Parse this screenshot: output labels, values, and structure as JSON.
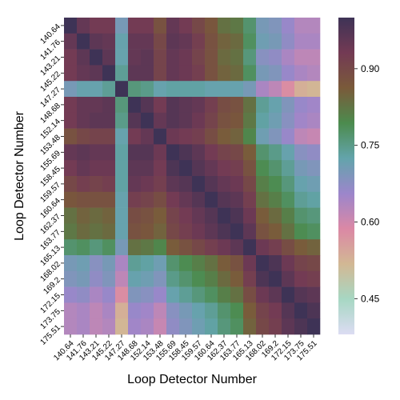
{
  "chart_data": {
    "type": "heatmap",
    "xlabel": "Loop Detector Number",
    "ylabel": "Loop Detector Number",
    "tick_labels": [
      "140.64",
      "141.76",
      "143.21",
      "145.22",
      "147.27",
      "148.68",
      "152.14",
      "153.48",
      "155.69",
      "158.45",
      "159.57",
      "160.64",
      "162.37",
      "163.77",
      "165.13",
      "168.02",
      "169.2",
      "172.15",
      "173.75",
      "175.51"
    ],
    "colorbar": {
      "min": 0.38,
      "max": 1.0,
      "ticks": [
        0.45,
        0.6,
        0.75,
        0.9
      ],
      "tick_labels": [
        "0.45",
        "0.60",
        "0.75",
        "0.90"
      ]
    },
    "colormap": [
      "#dcdcf3",
      "#a7d7c3",
      "#d2b894",
      "#db88a5",
      "#9c86cb",
      "#63a4ab",
      "#4c8b4e",
      "#7a5a3a",
      "#733a54",
      "#3e3356"
    ],
    "matrix": [
      [
        1.0,
        0.95,
        0.93,
        0.93,
        0.7,
        0.93,
        0.93,
        0.88,
        0.95,
        0.93,
        0.9,
        0.87,
        0.83,
        0.82,
        0.77,
        0.7,
        0.69,
        0.66,
        0.63,
        0.63
      ],
      [
        0.95,
        1.0,
        0.96,
        0.95,
        0.72,
        0.95,
        0.95,
        0.9,
        0.96,
        0.95,
        0.92,
        0.88,
        0.85,
        0.84,
        0.78,
        0.71,
        0.7,
        0.67,
        0.64,
        0.64
      ],
      [
        0.93,
        0.96,
        1.0,
        0.96,
        0.72,
        0.95,
        0.96,
        0.91,
        0.95,
        0.94,
        0.91,
        0.88,
        0.84,
        0.83,
        0.76,
        0.68,
        0.67,
        0.64,
        0.62,
        0.62
      ],
      [
        0.93,
        0.95,
        0.96,
        1.0,
        0.74,
        0.96,
        0.96,
        0.91,
        0.95,
        0.94,
        0.92,
        0.88,
        0.85,
        0.84,
        0.78,
        0.7,
        0.69,
        0.66,
        0.64,
        0.63
      ],
      [
        0.7,
        0.72,
        0.72,
        0.74,
        1.0,
        0.76,
        0.75,
        0.72,
        0.73,
        0.73,
        0.73,
        0.72,
        0.72,
        0.72,
        0.7,
        0.64,
        0.62,
        0.58,
        0.53,
        0.52
      ],
      [
        0.93,
        0.95,
        0.95,
        0.96,
        0.76,
        1.0,
        0.97,
        0.93,
        0.97,
        0.96,
        0.95,
        0.92,
        0.89,
        0.88,
        0.83,
        0.74,
        0.72,
        0.69,
        0.66,
        0.65
      ],
      [
        0.93,
        0.95,
        0.96,
        0.96,
        0.75,
        0.97,
        1.0,
        0.95,
        0.97,
        0.96,
        0.94,
        0.91,
        0.88,
        0.87,
        0.82,
        0.73,
        0.71,
        0.68,
        0.65,
        0.64
      ],
      [
        0.88,
        0.9,
        0.91,
        0.91,
        0.72,
        0.93,
        0.95,
        1.0,
        0.94,
        0.93,
        0.92,
        0.89,
        0.86,
        0.85,
        0.8,
        0.71,
        0.69,
        0.66,
        0.62,
        0.61
      ],
      [
        0.95,
        0.96,
        0.95,
        0.95,
        0.73,
        0.97,
        0.97,
        0.94,
        1.0,
        0.98,
        0.96,
        0.93,
        0.91,
        0.9,
        0.86,
        0.77,
        0.75,
        0.72,
        0.68,
        0.67
      ],
      [
        0.93,
        0.95,
        0.94,
        0.94,
        0.73,
        0.96,
        0.96,
        0.93,
        0.98,
        1.0,
        0.97,
        0.95,
        0.93,
        0.92,
        0.88,
        0.79,
        0.77,
        0.74,
        0.7,
        0.69
      ],
      [
        0.9,
        0.92,
        0.91,
        0.92,
        0.73,
        0.95,
        0.94,
        0.92,
        0.96,
        0.97,
        1.0,
        0.97,
        0.95,
        0.94,
        0.9,
        0.81,
        0.79,
        0.76,
        0.72,
        0.71
      ],
      [
        0.87,
        0.88,
        0.88,
        0.88,
        0.72,
        0.92,
        0.91,
        0.89,
        0.93,
        0.95,
        0.97,
        1.0,
        0.97,
        0.96,
        0.92,
        0.83,
        0.81,
        0.78,
        0.74,
        0.73
      ],
      [
        0.83,
        0.85,
        0.84,
        0.85,
        0.72,
        0.89,
        0.88,
        0.86,
        0.91,
        0.93,
        0.95,
        0.97,
        1.0,
        0.98,
        0.94,
        0.86,
        0.84,
        0.81,
        0.77,
        0.76
      ],
      [
        0.82,
        0.84,
        0.83,
        0.84,
        0.72,
        0.88,
        0.87,
        0.85,
        0.9,
        0.92,
        0.94,
        0.96,
        0.98,
        1.0,
        0.96,
        0.88,
        0.86,
        0.83,
        0.79,
        0.78
      ],
      [
        0.77,
        0.78,
        0.76,
        0.78,
        0.7,
        0.83,
        0.82,
        0.8,
        0.86,
        0.88,
        0.9,
        0.92,
        0.94,
        0.96,
        1.0,
        0.94,
        0.92,
        0.89,
        0.86,
        0.85
      ],
      [
        0.7,
        0.71,
        0.68,
        0.7,
        0.64,
        0.74,
        0.73,
        0.71,
        0.77,
        0.79,
        0.81,
        0.83,
        0.86,
        0.88,
        0.94,
        1.0,
        0.98,
        0.94,
        0.91,
        0.9
      ],
      [
        0.69,
        0.7,
        0.67,
        0.69,
        0.62,
        0.72,
        0.71,
        0.69,
        0.75,
        0.77,
        0.79,
        0.81,
        0.84,
        0.86,
        0.92,
        0.98,
        1.0,
        0.96,
        0.93,
        0.92
      ],
      [
        0.66,
        0.67,
        0.64,
        0.66,
        0.58,
        0.69,
        0.68,
        0.66,
        0.72,
        0.74,
        0.76,
        0.78,
        0.81,
        0.83,
        0.89,
        0.94,
        0.96,
        1.0,
        0.97,
        0.96
      ],
      [
        0.63,
        0.64,
        0.62,
        0.64,
        0.53,
        0.66,
        0.65,
        0.62,
        0.68,
        0.7,
        0.72,
        0.74,
        0.77,
        0.79,
        0.86,
        0.91,
        0.93,
        0.97,
        1.0,
        0.98
      ],
      [
        0.63,
        0.64,
        0.62,
        0.63,
        0.52,
        0.65,
        0.64,
        0.61,
        0.67,
        0.69,
        0.71,
        0.73,
        0.76,
        0.78,
        0.85,
        0.9,
        0.92,
        0.96,
        0.98,
        1.0
      ]
    ]
  }
}
